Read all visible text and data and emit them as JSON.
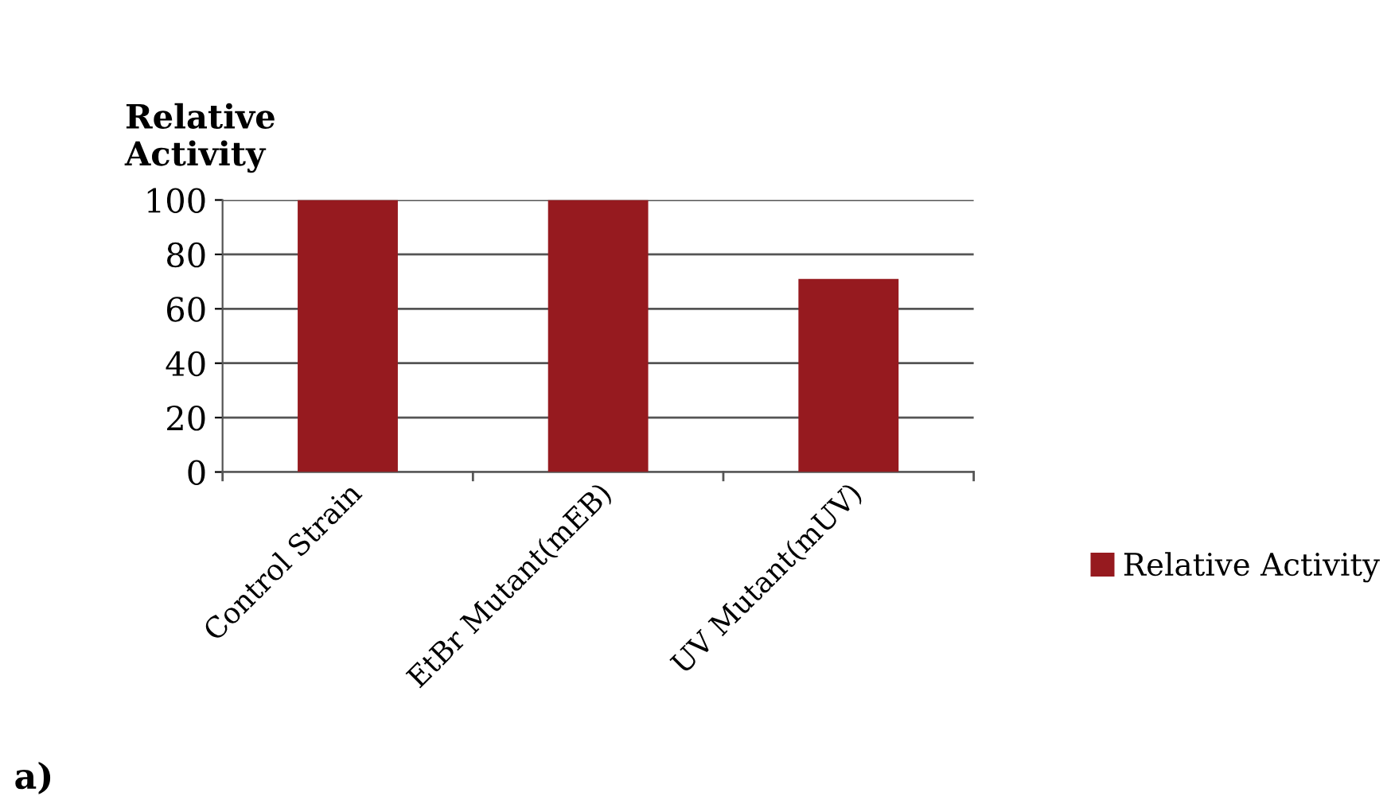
{
  "chart_data": {
    "type": "bar",
    "ylabel": "Relative\nActivity",
    "categories": [
      "Control Strain",
      "EtBr Mutant(mEB)",
      "UV Mutant(mUV)"
    ],
    "series": [
      {
        "name": "Relative Activity",
        "color": "#961a1f",
        "values": [
          100,
          100,
          71
        ]
      }
    ],
    "ylim": [
      0,
      100
    ],
    "yticks": [
      0,
      20,
      40,
      60,
      80,
      100
    ],
    "grid": "y",
    "legend": "right",
    "annotations": [
      "a)"
    ]
  }
}
